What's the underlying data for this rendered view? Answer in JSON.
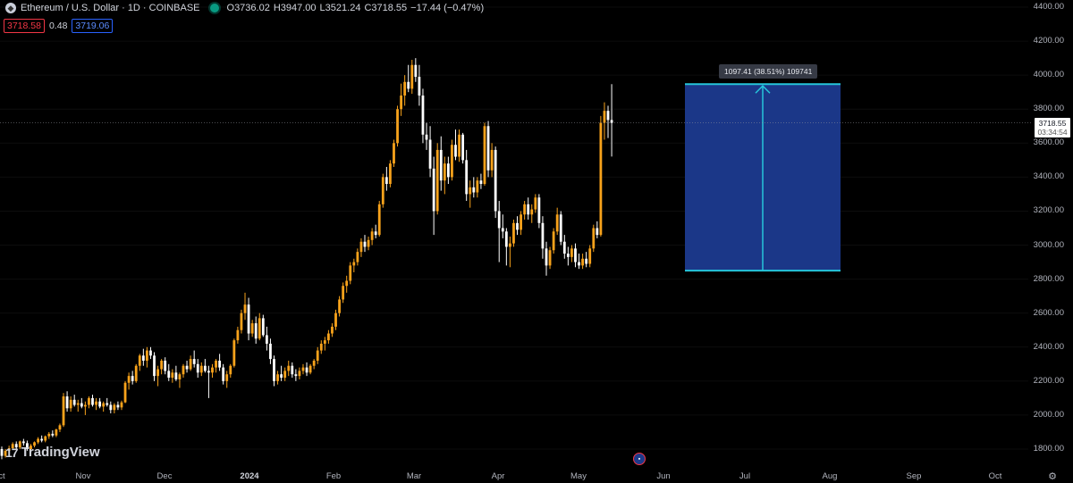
{
  "header": {
    "symbol_icon": "ethereum-icon",
    "title": "Ethereum / U.S. Dollar · 1D · COINBASE",
    "ohlc": {
      "o_label": "O",
      "o_value": "3736.02",
      "h_label": "H",
      "h_value": "3947.00",
      "l_label": "L",
      "l_value": "3521.24",
      "c_label": "C",
      "c_value": "3718.55",
      "change": "−17.44 (−0.47%)"
    },
    "sell_price": "3718.58",
    "spread": "0.48",
    "buy_price": "3719.06"
  },
  "price_axis": {
    "labels": [
      "4400.00",
      "4200.00",
      "4000.00",
      "3800.00",
      "3600.00",
      "3400.00",
      "3200.00",
      "3000.00",
      "2800.00",
      "2600.00",
      "2400.00",
      "2200.00",
      "2000.00",
      "1800.00"
    ],
    "current_price": "3718.55",
    "countdown": "03:34:54"
  },
  "time_axis": {
    "labels": [
      {
        "text": "ct",
        "bold": false
      },
      {
        "text": "Nov",
        "bold": false
      },
      {
        "text": "Dec",
        "bold": false
      },
      {
        "text": "2024",
        "bold": true
      },
      {
        "text": "Feb",
        "bold": false
      },
      {
        "text": "Mar",
        "bold": false
      },
      {
        "text": "Apr",
        "bold": false
      },
      {
        "text": "May",
        "bold": false
      },
      {
        "text": "Jun",
        "bold": false
      },
      {
        "text": "Jul",
        "bold": false
      },
      {
        "text": "Aug",
        "bold": false
      },
      {
        "text": "Sep",
        "bold": false
      },
      {
        "text": "Oct",
        "bold": false
      }
    ]
  },
  "measure_tool": {
    "label": "1097.41 (38.51%) 109741",
    "from_price": 2850,
    "to_price": 3947,
    "fill_color": "#1c3a8f",
    "line_color": "#26c6da"
  },
  "branding": {
    "logo_mark": "17",
    "logo_text": "TradingView"
  },
  "colors": {
    "up": "#f7a21b",
    "down": "#ffffff",
    "background": "#000000"
  },
  "chart_data": {
    "type": "candlestick",
    "ylim": [
      1750,
      4450
    ],
    "candles": [
      {
        "o": 1800,
        "h": 1815,
        "l": 1740,
        "c": 1760
      },
      {
        "o": 1760,
        "h": 1800,
        "l": 1750,
        "c": 1790
      },
      {
        "o": 1790,
        "h": 1820,
        "l": 1780,
        "c": 1805
      },
      {
        "o": 1805,
        "h": 1840,
        "l": 1795,
        "c": 1830
      },
      {
        "o": 1830,
        "h": 1845,
        "l": 1800,
        "c": 1810
      },
      {
        "o": 1810,
        "h": 1850,
        "l": 1800,
        "c": 1845
      },
      {
        "o": 1845,
        "h": 1860,
        "l": 1820,
        "c": 1835
      },
      {
        "o": 1835,
        "h": 1850,
        "l": 1790,
        "c": 1800
      },
      {
        "o": 1800,
        "h": 1830,
        "l": 1790,
        "c": 1820
      },
      {
        "o": 1820,
        "h": 1845,
        "l": 1810,
        "c": 1840
      },
      {
        "o": 1840,
        "h": 1870,
        "l": 1830,
        "c": 1860
      },
      {
        "o": 1860,
        "h": 1880,
        "l": 1840,
        "c": 1850
      },
      {
        "o": 1850,
        "h": 1880,
        "l": 1840,
        "c": 1875
      },
      {
        "o": 1875,
        "h": 1900,
        "l": 1860,
        "c": 1890
      },
      {
        "o": 1890,
        "h": 1910,
        "l": 1870,
        "c": 1880
      },
      {
        "o": 1880,
        "h": 1920,
        "l": 1870,
        "c": 1915
      },
      {
        "o": 1915,
        "h": 1950,
        "l": 1900,
        "c": 1940
      },
      {
        "o": 1940,
        "h": 2130,
        "l": 1930,
        "c": 2110
      },
      {
        "o": 2110,
        "h": 2140,
        "l": 2020,
        "c": 2040
      },
      {
        "o": 2040,
        "h": 2110,
        "l": 2020,
        "c": 2090
      },
      {
        "o": 2090,
        "h": 2120,
        "l": 2050,
        "c": 2060
      },
      {
        "o": 2060,
        "h": 2090,
        "l": 2020,
        "c": 2070
      },
      {
        "o": 2070,
        "h": 2100,
        "l": 2040,
        "c": 2050
      },
      {
        "o": 2050,
        "h": 2080,
        "l": 2000,
        "c": 2060
      },
      {
        "o": 2060,
        "h": 2110,
        "l": 2040,
        "c": 2100
      },
      {
        "o": 2100,
        "h": 2120,
        "l": 2050,
        "c": 2060
      },
      {
        "o": 2060,
        "h": 2100,
        "l": 2030,
        "c": 2080
      },
      {
        "o": 2080,
        "h": 2100,
        "l": 2040,
        "c": 2050
      },
      {
        "o": 2050,
        "h": 2080,
        "l": 2020,
        "c": 2070
      },
      {
        "o": 2070,
        "h": 2100,
        "l": 2050,
        "c": 2060
      },
      {
        "o": 2060,
        "h": 2080,
        "l": 2010,
        "c": 2030
      },
      {
        "o": 2030,
        "h": 2070,
        "l": 2010,
        "c": 2060
      },
      {
        "o": 2060,
        "h": 2080,
        "l": 2030,
        "c": 2045
      },
      {
        "o": 2045,
        "h": 2085,
        "l": 2030,
        "c": 2075
      },
      {
        "o": 2075,
        "h": 2200,
        "l": 2070,
        "c": 2190
      },
      {
        "o": 2190,
        "h": 2250,
        "l": 2150,
        "c": 2230
      },
      {
        "o": 2230,
        "h": 2260,
        "l": 2180,
        "c": 2200
      },
      {
        "o": 2200,
        "h": 2300,
        "l": 2190,
        "c": 2290
      },
      {
        "o": 2290,
        "h": 2360,
        "l": 2260,
        "c": 2350
      },
      {
        "o": 2350,
        "h": 2390,
        "l": 2290,
        "c": 2320
      },
      {
        "o": 2320,
        "h": 2400,
        "l": 2280,
        "c": 2380
      },
      {
        "o": 2380,
        "h": 2400,
        "l": 2330,
        "c": 2350
      },
      {
        "o": 2350,
        "h": 2370,
        "l": 2200,
        "c": 2230
      },
      {
        "o": 2230,
        "h": 2290,
        "l": 2170,
        "c": 2270
      },
      {
        "o": 2270,
        "h": 2330,
        "l": 2240,
        "c": 2320
      },
      {
        "o": 2320,
        "h": 2340,
        "l": 2240,
        "c": 2260
      },
      {
        "o": 2260,
        "h": 2300,
        "l": 2200,
        "c": 2220
      },
      {
        "o": 2220,
        "h": 2270,
        "l": 2190,
        "c": 2250
      },
      {
        "o": 2250,
        "h": 2290,
        "l": 2200,
        "c": 2210
      },
      {
        "o": 2210,
        "h": 2250,
        "l": 2160,
        "c": 2240
      },
      {
        "o": 2240,
        "h": 2300,
        "l": 2220,
        "c": 2290
      },
      {
        "o": 2290,
        "h": 2320,
        "l": 2250,
        "c": 2270
      },
      {
        "o": 2270,
        "h": 2350,
        "l": 2260,
        "c": 2330
      },
      {
        "o": 2330,
        "h": 2380,
        "l": 2280,
        "c": 2300
      },
      {
        "o": 2300,
        "h": 2330,
        "l": 2220,
        "c": 2250
      },
      {
        "o": 2250,
        "h": 2310,
        "l": 2230,
        "c": 2290
      },
      {
        "o": 2290,
        "h": 2330,
        "l": 2250,
        "c": 2260
      },
      {
        "o": 2260,
        "h": 2290,
        "l": 2100,
        "c": 2250
      },
      {
        "o": 2250,
        "h": 2300,
        "l": 2220,
        "c": 2280
      },
      {
        "o": 2280,
        "h": 2330,
        "l": 2250,
        "c": 2320
      },
      {
        "o": 2320,
        "h": 2360,
        "l": 2260,
        "c": 2280
      },
      {
        "o": 2280,
        "h": 2300,
        "l": 2180,
        "c": 2200
      },
      {
        "o": 2200,
        "h": 2260,
        "l": 2160,
        "c": 2240
      },
      {
        "o": 2240,
        "h": 2300,
        "l": 2220,
        "c": 2290
      },
      {
        "o": 2290,
        "h": 2450,
        "l": 2280,
        "c": 2440
      },
      {
        "o": 2440,
        "h": 2520,
        "l": 2420,
        "c": 2500
      },
      {
        "o": 2500,
        "h": 2620,
        "l": 2480,
        "c": 2600
      },
      {
        "o": 2600,
        "h": 2720,
        "l": 2560,
        "c": 2650
      },
      {
        "o": 2650,
        "h": 2690,
        "l": 2440,
        "c": 2480
      },
      {
        "o": 2480,
        "h": 2560,
        "l": 2460,
        "c": 2540
      },
      {
        "o": 2540,
        "h": 2580,
        "l": 2420,
        "c": 2450
      },
      {
        "o": 2450,
        "h": 2600,
        "l": 2440,
        "c": 2570
      },
      {
        "o": 2570,
        "h": 2590,
        "l": 2460,
        "c": 2470
      },
      {
        "o": 2470,
        "h": 2520,
        "l": 2380,
        "c": 2420
      },
      {
        "o": 2420,
        "h": 2450,
        "l": 2300,
        "c": 2330
      },
      {
        "o": 2330,
        "h": 2350,
        "l": 2170,
        "c": 2200
      },
      {
        "o": 2200,
        "h": 2260,
        "l": 2180,
        "c": 2240
      },
      {
        "o": 2240,
        "h": 2290,
        "l": 2200,
        "c": 2220
      },
      {
        "o": 2220,
        "h": 2280,
        "l": 2200,
        "c": 2260
      },
      {
        "o": 2260,
        "h": 2320,
        "l": 2230,
        "c": 2290
      },
      {
        "o": 2290,
        "h": 2310,
        "l": 2220,
        "c": 2240
      },
      {
        "o": 2240,
        "h": 2270,
        "l": 2200,
        "c": 2230
      },
      {
        "o": 2230,
        "h": 2280,
        "l": 2210,
        "c": 2260
      },
      {
        "o": 2260,
        "h": 2300,
        "l": 2240,
        "c": 2280
      },
      {
        "o": 2280,
        "h": 2310,
        "l": 2230,
        "c": 2250
      },
      {
        "o": 2250,
        "h": 2300,
        "l": 2240,
        "c": 2290
      },
      {
        "o": 2290,
        "h": 2330,
        "l": 2270,
        "c": 2320
      },
      {
        "o": 2320,
        "h": 2400,
        "l": 2300,
        "c": 2380
      },
      {
        "o": 2380,
        "h": 2440,
        "l": 2360,
        "c": 2420
      },
      {
        "o": 2420,
        "h": 2460,
        "l": 2380,
        "c": 2440
      },
      {
        "o": 2440,
        "h": 2500,
        "l": 2420,
        "c": 2480
      },
      {
        "o": 2480,
        "h": 2540,
        "l": 2460,
        "c": 2520
      },
      {
        "o": 2520,
        "h": 2620,
        "l": 2500,
        "c": 2600
      },
      {
        "o": 2600,
        "h": 2700,
        "l": 2580,
        "c": 2680
      },
      {
        "o": 2680,
        "h": 2780,
        "l": 2660,
        "c": 2760
      },
      {
        "o": 2760,
        "h": 2820,
        "l": 2720,
        "c": 2790
      },
      {
        "o": 2790,
        "h": 2900,
        "l": 2770,
        "c": 2880
      },
      {
        "o": 2880,
        "h": 2920,
        "l": 2840,
        "c": 2900
      },
      {
        "o": 2900,
        "h": 2980,
        "l": 2880,
        "c": 2960
      },
      {
        "o": 2960,
        "h": 3040,
        "l": 2930,
        "c": 3020
      },
      {
        "o": 3020,
        "h": 3060,
        "l": 2960,
        "c": 2990
      },
      {
        "o": 2990,
        "h": 3050,
        "l": 2970,
        "c": 3030
      },
      {
        "o": 3030,
        "h": 3100,
        "l": 3000,
        "c": 3080
      },
      {
        "o": 3080,
        "h": 3120,
        "l": 3040,
        "c": 3060
      },
      {
        "o": 3060,
        "h": 3260,
        "l": 3050,
        "c": 3240
      },
      {
        "o": 3240,
        "h": 3420,
        "l": 3220,
        "c": 3400
      },
      {
        "o": 3400,
        "h": 3460,
        "l": 3320,
        "c": 3360
      },
      {
        "o": 3360,
        "h": 3500,
        "l": 3340,
        "c": 3480
      },
      {
        "o": 3480,
        "h": 3620,
        "l": 3460,
        "c": 3600
      },
      {
        "o": 3600,
        "h": 3820,
        "l": 3580,
        "c": 3800
      },
      {
        "o": 3800,
        "h": 3950,
        "l": 3760,
        "c": 3880
      },
      {
        "o": 3880,
        "h": 4000,
        "l": 3820,
        "c": 3960
      },
      {
        "o": 3960,
        "h": 4060,
        "l": 3900,
        "c": 3920
      },
      {
        "o": 3920,
        "h": 4090,
        "l": 3890,
        "c": 4060
      },
      {
        "o": 4060,
        "h": 4100,
        "l": 3960,
        "c": 3990
      },
      {
        "o": 3990,
        "h": 4060,
        "l": 3820,
        "c": 3880
      },
      {
        "o": 3880,
        "h": 3920,
        "l": 3600,
        "c": 3650
      },
      {
        "o": 3650,
        "h": 3720,
        "l": 3560,
        "c": 3620
      },
      {
        "o": 3620,
        "h": 3700,
        "l": 3400,
        "c": 3450
      },
      {
        "o": 3450,
        "h": 3520,
        "l": 3060,
        "c": 3200
      },
      {
        "o": 3200,
        "h": 3600,
        "l": 3180,
        "c": 3560
      },
      {
        "o": 3560,
        "h": 3640,
        "l": 3320,
        "c": 3380
      },
      {
        "o": 3380,
        "h": 3520,
        "l": 3300,
        "c": 3480
      },
      {
        "o": 3480,
        "h": 3520,
        "l": 3360,
        "c": 3400
      },
      {
        "o": 3400,
        "h": 3620,
        "l": 3380,
        "c": 3590
      },
      {
        "o": 3590,
        "h": 3680,
        "l": 3500,
        "c": 3520
      },
      {
        "o": 3520,
        "h": 3680,
        "l": 3490,
        "c": 3650
      },
      {
        "o": 3650,
        "h": 3660,
        "l": 3480,
        "c": 3500
      },
      {
        "o": 3500,
        "h": 3560,
        "l": 3260,
        "c": 3300
      },
      {
        "o": 3300,
        "h": 3380,
        "l": 3220,
        "c": 3340
      },
      {
        "o": 3340,
        "h": 3400,
        "l": 3280,
        "c": 3310
      },
      {
        "o": 3310,
        "h": 3400,
        "l": 3280,
        "c": 3380
      },
      {
        "o": 3380,
        "h": 3420,
        "l": 3330,
        "c": 3360
      },
      {
        "o": 3360,
        "h": 3720,
        "l": 3350,
        "c": 3700
      },
      {
        "o": 3700,
        "h": 3730,
        "l": 3400,
        "c": 3440
      },
      {
        "o": 3440,
        "h": 3600,
        "l": 3400,
        "c": 3560
      },
      {
        "o": 3560,
        "h": 3580,
        "l": 3160,
        "c": 3200
      },
      {
        "o": 3200,
        "h": 3260,
        "l": 2900,
        "c": 3100
      },
      {
        "o": 3100,
        "h": 3180,
        "l": 3040,
        "c": 3080
      },
      {
        "o": 3080,
        "h": 3100,
        "l": 2880,
        "c": 2990
      },
      {
        "o": 2990,
        "h": 3050,
        "l": 2870,
        "c": 3010
      },
      {
        "o": 3010,
        "h": 3150,
        "l": 2990,
        "c": 3130
      },
      {
        "o": 3130,
        "h": 3170,
        "l": 3060,
        "c": 3090
      },
      {
        "o": 3090,
        "h": 3200,
        "l": 3060,
        "c": 3180
      },
      {
        "o": 3180,
        "h": 3260,
        "l": 3150,
        "c": 3240
      },
      {
        "o": 3240,
        "h": 3280,
        "l": 3150,
        "c": 3180
      },
      {
        "o": 3180,
        "h": 3240,
        "l": 3130,
        "c": 3210
      },
      {
        "o": 3210,
        "h": 3300,
        "l": 3190,
        "c": 3280
      },
      {
        "o": 3280,
        "h": 3300,
        "l": 3100,
        "c": 3130
      },
      {
        "o": 3130,
        "h": 3170,
        "l": 2920,
        "c": 2980
      },
      {
        "o": 2980,
        "h": 3020,
        "l": 2820,
        "c": 2880
      },
      {
        "o": 2880,
        "h": 2990,
        "l": 2860,
        "c": 2970
      },
      {
        "o": 2970,
        "h": 3100,
        "l": 2950,
        "c": 3080
      },
      {
        "o": 3080,
        "h": 3220,
        "l": 3060,
        "c": 3180
      },
      {
        "o": 3180,
        "h": 3200,
        "l": 3000,
        "c": 3020
      },
      {
        "o": 3020,
        "h": 3060,
        "l": 2920,
        "c": 2950
      },
      {
        "o": 2950,
        "h": 2990,
        "l": 2880,
        "c": 2930
      },
      {
        "o": 2930,
        "h": 3000,
        "l": 2900,
        "c": 2980
      },
      {
        "o": 2980,
        "h": 3010,
        "l": 2870,
        "c": 2900
      },
      {
        "o": 2900,
        "h": 2950,
        "l": 2860,
        "c": 2880
      },
      {
        "o": 2880,
        "h": 2950,
        "l": 2860,
        "c": 2920
      },
      {
        "o": 2920,
        "h": 2960,
        "l": 2870,
        "c": 2890
      },
      {
        "o": 2890,
        "h": 3000,
        "l": 2870,
        "c": 2980
      },
      {
        "o": 2980,
        "h": 3120,
        "l": 2960,
        "c": 3100
      },
      {
        "o": 3100,
        "h": 3140,
        "l": 3040,
        "c": 3060
      },
      {
        "o": 3060,
        "h": 3760,
        "l": 3050,
        "c": 3720
      },
      {
        "o": 3720,
        "h": 3840,
        "l": 3620,
        "c": 3790
      },
      {
        "o": 3790,
        "h": 3820,
        "l": 3630,
        "c": 3736
      },
      {
        "o": 3736,
        "h": 3947,
        "l": 3521,
        "c": 3719
      }
    ]
  }
}
